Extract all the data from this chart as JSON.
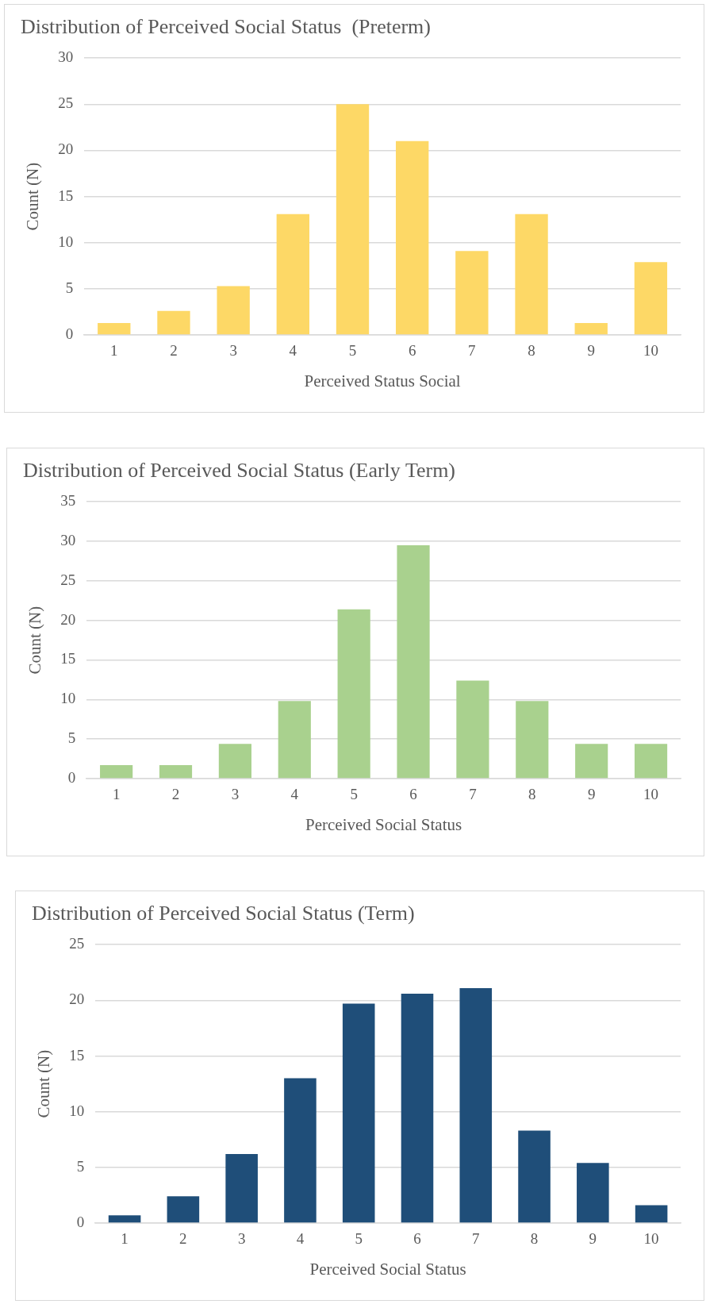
{
  "chart_data": [
    {
      "type": "bar",
      "title": "Distribution of Perceived Social Status  (Preterm)",
      "xlabel": "Perceived Status Social",
      "ylabel": "Count (N)",
      "categories": [
        "1",
        "2",
        "3",
        "4",
        "5",
        "6",
        "7",
        "8",
        "9",
        "10"
      ],
      "values": [
        1.3,
        2.6,
        5.3,
        13.1,
        25,
        21,
        9.1,
        13.1,
        1.3,
        7.9
      ],
      "color": "#fdd866",
      "ylim": [
        0,
        30
      ],
      "yticks": [
        0,
        5,
        10,
        15,
        20,
        25,
        30
      ],
      "grid": "y"
    },
    {
      "type": "bar",
      "title": "Distribution of Perceived Social Status (Early Term)",
      "xlabel": "Perceived Social Status",
      "ylabel": "Count (N)",
      "categories": [
        "1",
        "2",
        "3",
        "4",
        "5",
        "6",
        "7",
        "8",
        "9",
        "10"
      ],
      "values": [
        1.7,
        1.7,
        4.4,
        9.8,
        21.4,
        29.5,
        12.4,
        9.8,
        4.4,
        4.4
      ],
      "color": "#a9d18e",
      "ylim": [
        0,
        35
      ],
      "yticks": [
        0,
        5,
        10,
        15,
        20,
        25,
        30,
        35
      ],
      "grid": "y"
    },
    {
      "type": "bar",
      "title": "Distribution of Perceived Social Status (Term)",
      "xlabel": "Perceived Social Status",
      "ylabel": "Count (N)",
      "categories": [
        "1",
        "2",
        "3",
        "4",
        "5",
        "6",
        "7",
        "8",
        "9",
        "10"
      ],
      "values": [
        0.7,
        2.4,
        6.2,
        13.0,
        19.7,
        20.6,
        21.1,
        8.3,
        5.4,
        1.6
      ],
      "color": "#1f4e79",
      "ylim": [
        0,
        25
      ],
      "yticks": [
        0,
        5,
        10,
        15,
        20,
        25
      ],
      "grid": "y"
    }
  ]
}
